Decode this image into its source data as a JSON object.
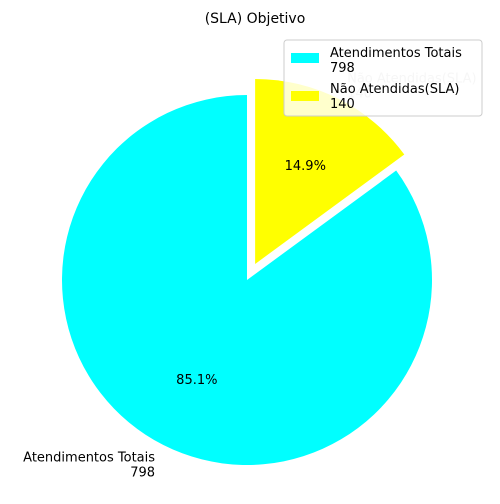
{
  "chart_data": {
    "type": "pie",
    "title": "(SLA) Objetivo",
    "slices": [
      {
        "label": "Atendimentos Totais",
        "value_text": "798",
        "value": 798,
        "pct": "85.1%",
        "color": "#00ffff",
        "exploded": false
      },
      {
        "label": "Não Atendidas(SLA)",
        "value_text": "140",
        "value": 140,
        "pct": "14.9%",
        "color": "#ffff00",
        "exploded": true
      }
    ],
    "legend_position": "top-right"
  }
}
